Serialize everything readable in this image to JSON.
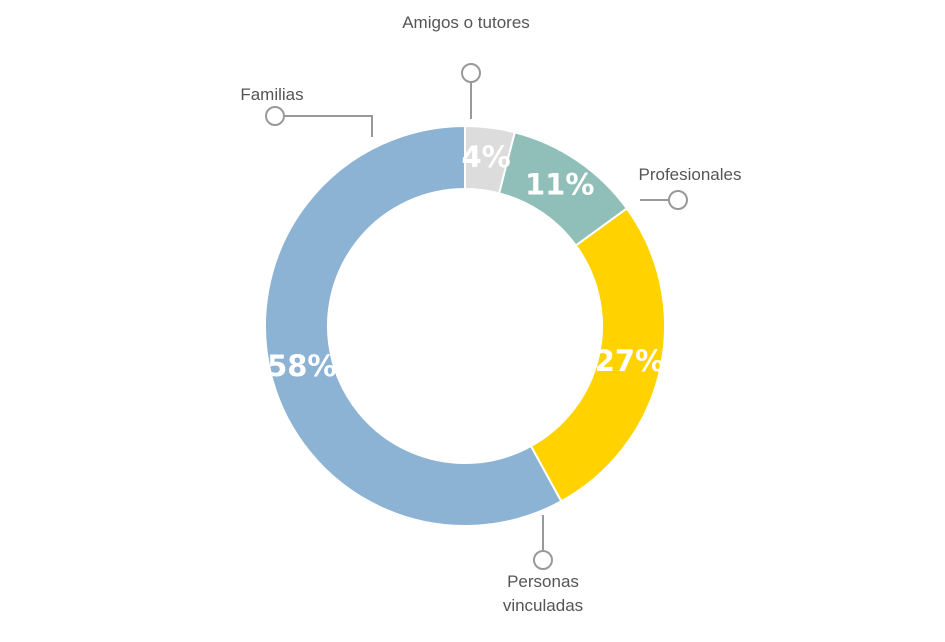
{
  "chart_data": {
    "type": "donut",
    "categories": [
      "Amigos o tutores",
      "Profesionales",
      "Personas vinculadas",
      "Familias"
    ],
    "values": [
      4,
      11,
      27,
      58
    ],
    "value_labels": [
      "4%",
      "11%",
      "27%",
      "58%"
    ],
    "colors": [
      "#dcdcdc",
      "#8fbfb8",
      "#ffd200",
      "#8db3d4"
    ]
  }
}
